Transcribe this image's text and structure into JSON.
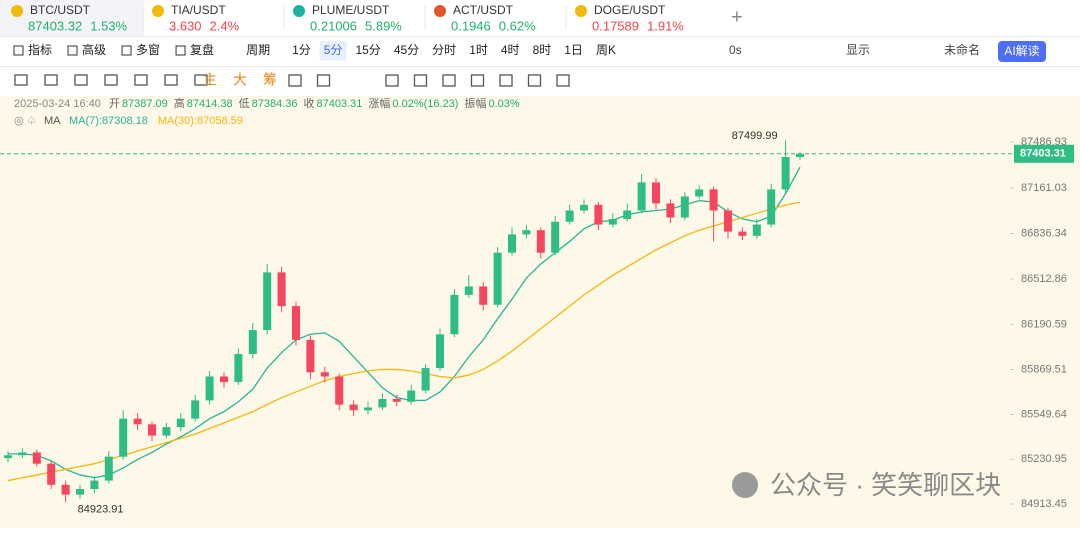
{
  "tabs": [
    {
      "name": "BTC/USDT",
      "price": "87403.32",
      "change": "1.53%",
      "color": "#20b26c"
    },
    {
      "name": "TIA/USDT",
      "price": "3.630",
      "change": "2.4%",
      "color": "#ef454a"
    },
    {
      "name": "PLUME/USDT",
      "price": "0.21006",
      "change": "5.89%",
      "color": "#20b26c"
    },
    {
      "name": "ACT/USDT",
      "price": "0.1946",
      "change": "0.62%",
      "color": "#20b26c"
    },
    {
      "name": "DOGE/USDT",
      "price": "0.17589",
      "change": "1.91%",
      "color": "#ef454a"
    }
  ],
  "toolbar": {
    "left": [
      "指标",
      "高级",
      "多窗",
      "复盘"
    ],
    "period_label": "周期",
    "periods": [
      "1分",
      "5分",
      "15分",
      "45分",
      "分时",
      "1时",
      "4时",
      "8时",
      "1日",
      "周K"
    ],
    "selected_period": 1,
    "right": [
      "0s",
      "显示",
      "未命名"
    ],
    "ai": "AI解读"
  },
  "tools": {
    "markers": [
      "主",
      "大",
      "筹"
    ]
  },
  "info": {
    "date": "2025-03-24 16:40",
    "items": [
      {
        "label": "开",
        "value": "87387.09"
      },
      {
        "label": "高",
        "value": "87414.38"
      },
      {
        "label": "低",
        "value": "87384.36"
      },
      {
        "label": "收",
        "value": "87403.31"
      },
      {
        "label": "涨幅",
        "value": "0.02%(16.23)"
      },
      {
        "label": "振幅",
        "value": "0.03%"
      }
    ],
    "ma_title": "MA",
    "ma_items": [
      "MA(7):87308.18",
      "MA(30):87058.59"
    ]
  },
  "watermark": "公众号 · 笑笑聊区块",
  "chart_data": {
    "type": "candlestick",
    "up_color": "#2ebd85",
    "down_color": "#f6465d",
    "ylim": [
      84742.8,
      87586.5
    ],
    "yticks": [
      87486.93,
      87161.03,
      86836.34,
      86512.86,
      86190.59,
      85869.51,
      85549.64,
      85230.95,
      84913.45
    ],
    "candles": [
      [
        85240,
        85290,
        85210,
        85260
      ],
      [
        85260,
        85310,
        85240,
        85280
      ],
      [
        85280,
        85300,
        85180,
        85200
      ],
      [
        85200,
        85220,
        85020,
        85050
      ],
      [
        85050,
        85080,
        84923.91,
        84980
      ],
      [
        84980,
        85050,
        84950,
        85020
      ],
      [
        85020,
        85110,
        84990,
        85080
      ],
      [
        85080,
        85290,
        85060,
        85250
      ],
      [
        85250,
        85580,
        85230,
        85520
      ],
      [
        85520,
        85560,
        85440,
        85480
      ],
      [
        85480,
        85500,
        85360,
        85400
      ],
      [
        85400,
        85490,
        85380,
        85460
      ],
      [
        85460,
        85560,
        85430,
        85520
      ],
      [
        85520,
        85690,
        85500,
        85650
      ],
      [
        85650,
        85860,
        85620,
        85820
      ],
      [
        85820,
        85850,
        85740,
        85780
      ],
      [
        85780,
        86020,
        85760,
        85980
      ],
      [
        85980,
        86200,
        85950,
        86150
      ],
      [
        86150,
        86620,
        86120,
        86560
      ],
      [
        86560,
        86600,
        86280,
        86320
      ],
      [
        86320,
        86350,
        86040,
        86080
      ],
      [
        86080,
        86110,
        85800,
        85850
      ],
      [
        85850,
        85890,
        85780,
        85820
      ],
      [
        85820,
        85840,
        85580,
        85620
      ],
      [
        85620,
        85650,
        85540,
        85580
      ],
      [
        85580,
        85640,
        85550,
        85600
      ],
      [
        85600,
        85700,
        85580,
        85660
      ],
      [
        85660,
        85690,
        85610,
        85640
      ],
      [
        85640,
        85760,
        85620,
        85720
      ],
      [
        85720,
        85910,
        85700,
        85880
      ],
      [
        85880,
        86160,
        85860,
        86120
      ],
      [
        86120,
        86440,
        86100,
        86400
      ],
      [
        86400,
        86540,
        86380,
        86460
      ],
      [
        86460,
        86490,
        86290,
        86330
      ],
      [
        86330,
        86740,
        86310,
        86700
      ],
      [
        86700,
        86880,
        86680,
        86830
      ],
      [
        86830,
        86900,
        86800,
        86860
      ],
      [
        86860,
        86880,
        86660,
        86700
      ],
      [
        86700,
        86960,
        86680,
        86920
      ],
      [
        86920,
        87040,
        86900,
        87000
      ],
      [
        87000,
        87080,
        86980,
        87040
      ],
      [
        87040,
        87060,
        86860,
        86900
      ],
      [
        86900,
        86980,
        86880,
        86940
      ],
      [
        86940,
        87050,
        86920,
        87000
      ],
      [
        87000,
        87260,
        86980,
        87200
      ],
      [
        87200,
        87230,
        87010,
        87050
      ],
      [
        87050,
        87080,
        86910,
        86950
      ],
      [
        86950,
        87130,
        86930,
        87100
      ],
      [
        87100,
        87180,
        87080,
        87150
      ],
      [
        87150,
        87170,
        86780,
        87000
      ],
      [
        87000,
        87020,
        86800,
        86850
      ],
      [
        86850,
        86880,
        86790,
        86820
      ],
      [
        86820,
        86940,
        86800,
        86900
      ],
      [
        86900,
        87190,
        86880,
        87150
      ],
      [
        87150,
        87499.99,
        87130,
        87380
      ],
      [
        87380,
        87414.38,
        87360,
        87403.31
      ]
    ],
    "high_mark": 54,
    "low_mark": 4,
    "ma": [
      {
        "name": "MA(7)",
        "color": "#26b59a",
        "values": [
          85270,
          85270,
          85260,
          85220,
          85160,
          85120,
          85100,
          85120,
          85170,
          85230,
          85280,
          85340,
          85390,
          85450,
          85520,
          85570,
          85640,
          85730,
          85880,
          85990,
          86080,
          86120,
          86130,
          86070,
          85960,
          85850,
          85740,
          85670,
          85650,
          85650,
          85710,
          85820,
          85960,
          86080,
          86230,
          86370,
          86520,
          86620,
          86700,
          86780,
          86870,
          86920,
          86930,
          86970,
          86990,
          87000,
          87010,
          87040,
          87070,
          87060,
          86990,
          86940,
          86920,
          86960,
          87120,
          87308.18
        ]
      },
      {
        "name": "MA(30)",
        "color": "#f5b70f",
        "values": [
          85080,
          85100,
          85120,
          85140,
          85160,
          85180,
          85200,
          85230,
          85260,
          85290,
          85320,
          85350,
          85380,
          85410,
          85450,
          85490,
          85530,
          85570,
          85620,
          85670,
          85710,
          85750,
          85790,
          85820,
          85840,
          85860,
          85870,
          85870,
          85860,
          85840,
          85820,
          85810,
          85830,
          85870,
          85930,
          86000,
          86080,
          86160,
          86240,
          86320,
          86400,
          86470,
          86540,
          86600,
          86660,
          86720,
          86770,
          86820,
          86860,
          86890,
          86920,
          86950,
          86980,
          87010,
          87040,
          87058.59
        ]
      }
    ]
  }
}
